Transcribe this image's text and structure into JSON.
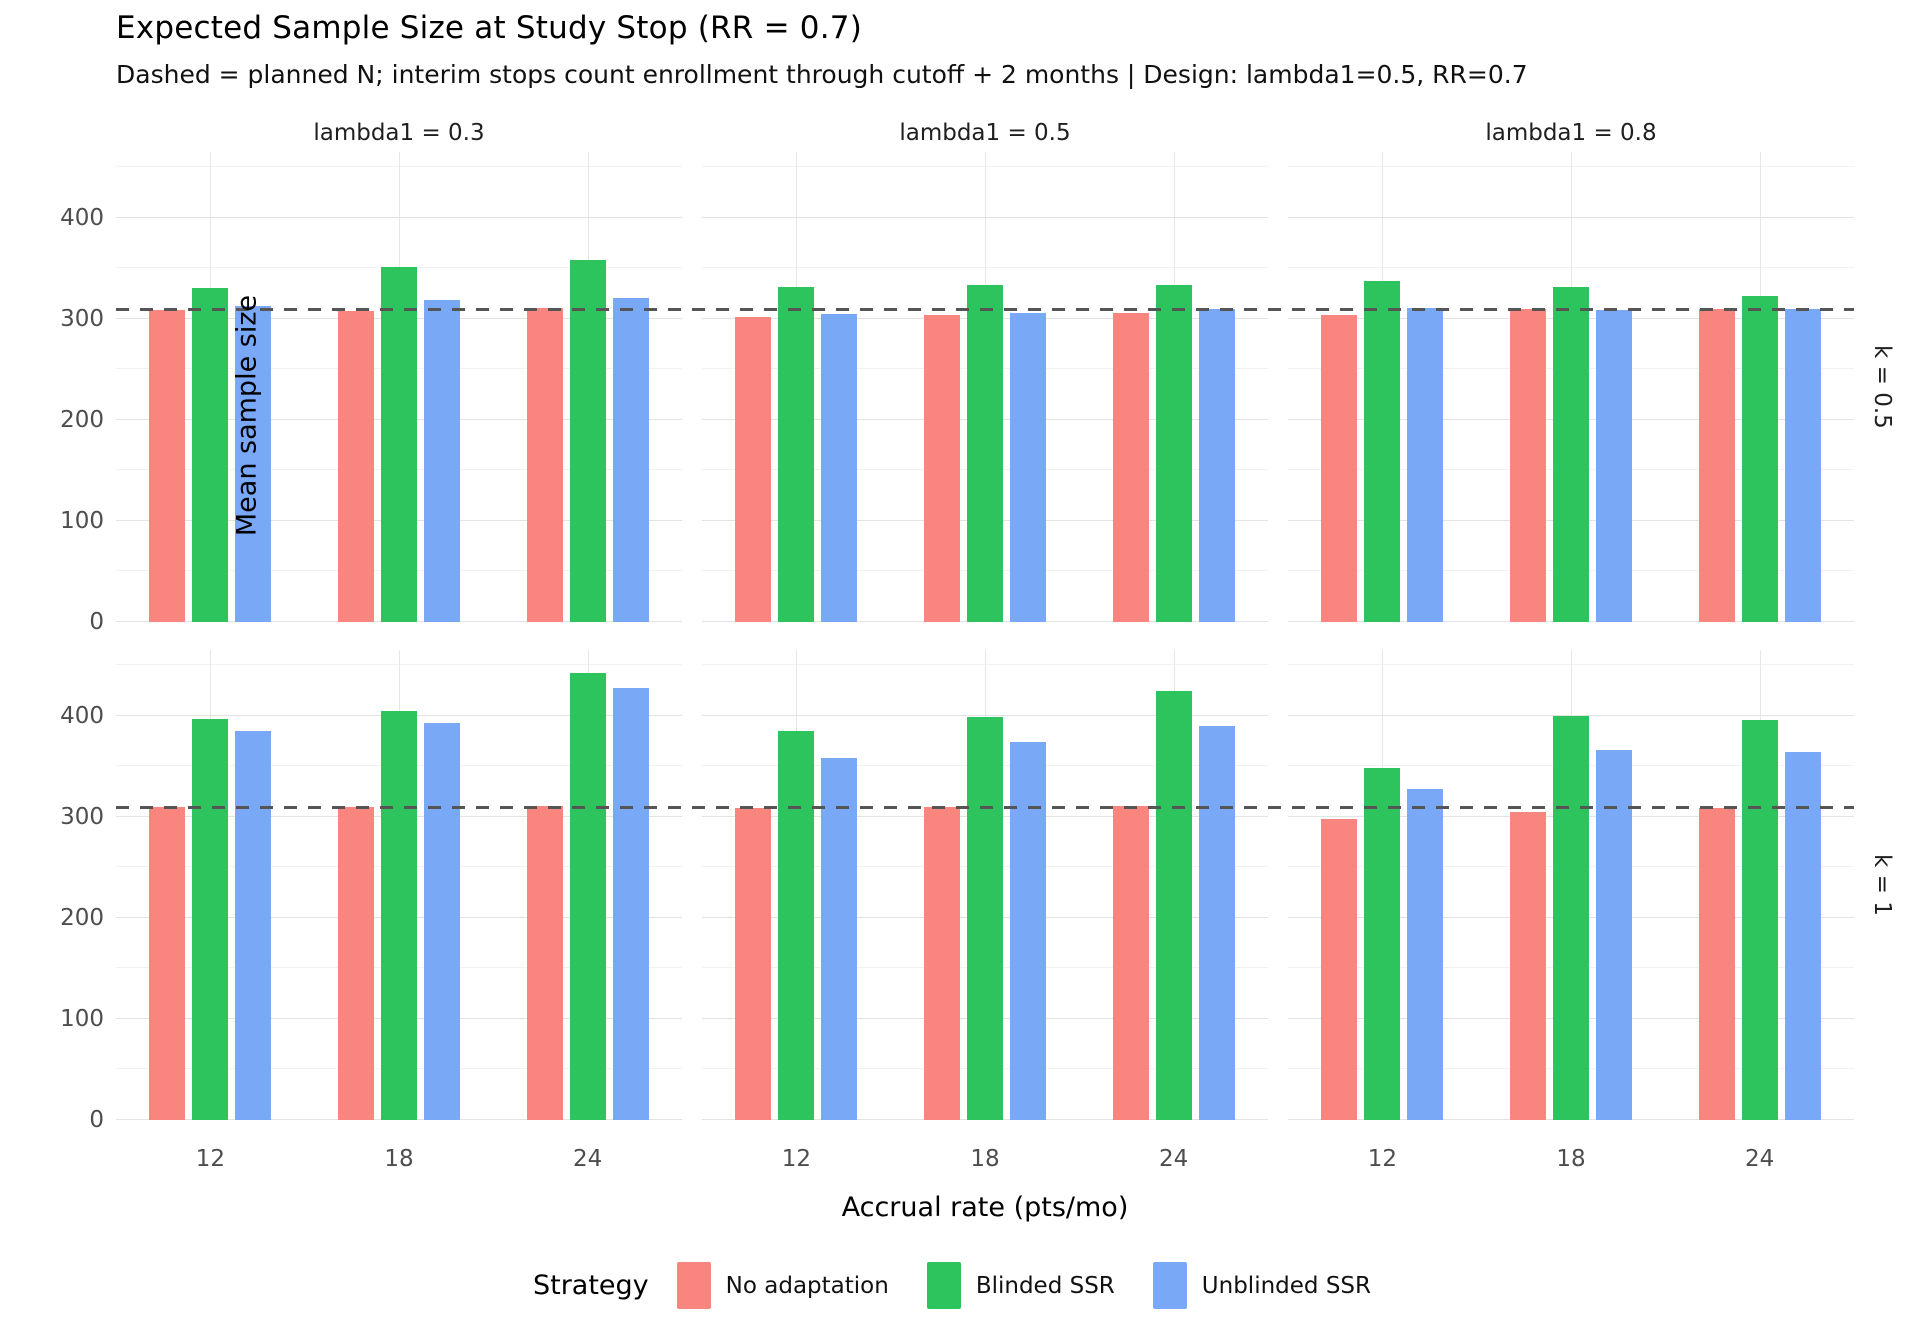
{
  "header": {
    "title": "Expected Sample Size at Study Stop (RR = 0.7)",
    "subtitle": "Dashed = planned N; interim stops count enrollment through cutoff + 2 months | Design: lambda1=0.5, RR=0.7"
  },
  "chart_data": {
    "type": "bar",
    "title": "Expected Sample Size at Study Stop (RR = 0.7)",
    "subtitle": "Dashed = planned N; interim stops count enrollment through cutoff + 2 months | Design: lambda1=0.5, RR=0.7",
    "xlabel": "Accrual rate (pts/mo)",
    "ylabel": "Mean sample size",
    "x_categories": [
      "12",
      "18",
      "24"
    ],
    "col_facets": [
      "lambda1 = 0.3",
      "lambda1 = 0.5",
      "lambda1 = 0.8"
    ],
    "row_facets": [
      "k = 0.5",
      "k = 1"
    ],
    "y_ticks": [
      0,
      100,
      200,
      300,
      400
    ],
    "ylim": [
      0,
      465
    ],
    "grid": true,
    "legend_position": "bottom",
    "legend_title": "Strategy",
    "series": [
      {
        "name": "No adaptation",
        "color": "#F8867E"
      },
      {
        "name": "Blinded SSR",
        "color": "#2DC45E"
      },
      {
        "name": "Unblinded SSR",
        "color": "#79A8F7"
      }
    ],
    "reference_line": {
      "label": "planned N",
      "value": 310,
      "style": "dashed",
      "color": "#555555"
    },
    "panels": [
      {
        "row_facet": "k = 0.5",
        "col_facet": "lambda1 = 0.3",
        "series": [
          {
            "name": "No adaptation",
            "values": [
              309,
              308,
              311
            ]
          },
          {
            "name": "Blinded SSR",
            "values": [
              330,
              351,
              358
            ]
          },
          {
            "name": "Unblinded SSR",
            "values": [
              313,
              319,
              321
            ]
          }
        ]
      },
      {
        "row_facet": "k = 0.5",
        "col_facet": "lambda1 = 0.5",
        "series": [
          {
            "name": "No adaptation",
            "values": [
              302,
              304,
              306
            ]
          },
          {
            "name": "Blinded SSR",
            "values": [
              331,
              333,
              333
            ]
          },
          {
            "name": "Unblinded SSR",
            "values": [
              305,
              306,
              310
            ]
          }
        ]
      },
      {
        "row_facet": "k = 0.5",
        "col_facet": "lambda1 = 0.8",
        "series": [
          {
            "name": "No adaptation",
            "values": [
              304,
              310,
              310
            ]
          },
          {
            "name": "Blinded SSR",
            "values": [
              337,
              331,
              323
            ]
          },
          {
            "name": "Unblinded SSR",
            "values": [
              311,
              309,
              310
            ]
          }
        ]
      },
      {
        "row_facet": "k = 1",
        "col_facet": "lambda1 = 0.3",
        "series": [
          {
            "name": "No adaptation",
            "values": [
              310,
              310,
              311
            ]
          },
          {
            "name": "Blinded SSR",
            "values": [
              397,
              405,
              442
            ]
          },
          {
            "name": "Unblinded SSR",
            "values": [
              385,
              393,
              427
            ]
          }
        ]
      },
      {
        "row_facet": "k = 1",
        "col_facet": "lambda1 = 0.5",
        "series": [
          {
            "name": "No adaptation",
            "values": [
              309,
              310,
              311
            ]
          },
          {
            "name": "Blinded SSR",
            "values": [
              385,
              399,
              424
            ]
          },
          {
            "name": "Unblinded SSR",
            "values": [
              358,
              374,
              390
            ]
          }
        ]
      },
      {
        "row_facet": "k = 1",
        "col_facet": "lambda1 = 0.8",
        "series": [
          {
            "name": "No adaptation",
            "values": [
              298,
              305,
              309
            ]
          },
          {
            "name": "Blinded SSR",
            "values": [
              348,
              400,
              396
            ]
          },
          {
            "name": "Unblinded SSR",
            "values": [
              327,
              366,
              364
            ]
          }
        ]
      }
    ]
  }
}
